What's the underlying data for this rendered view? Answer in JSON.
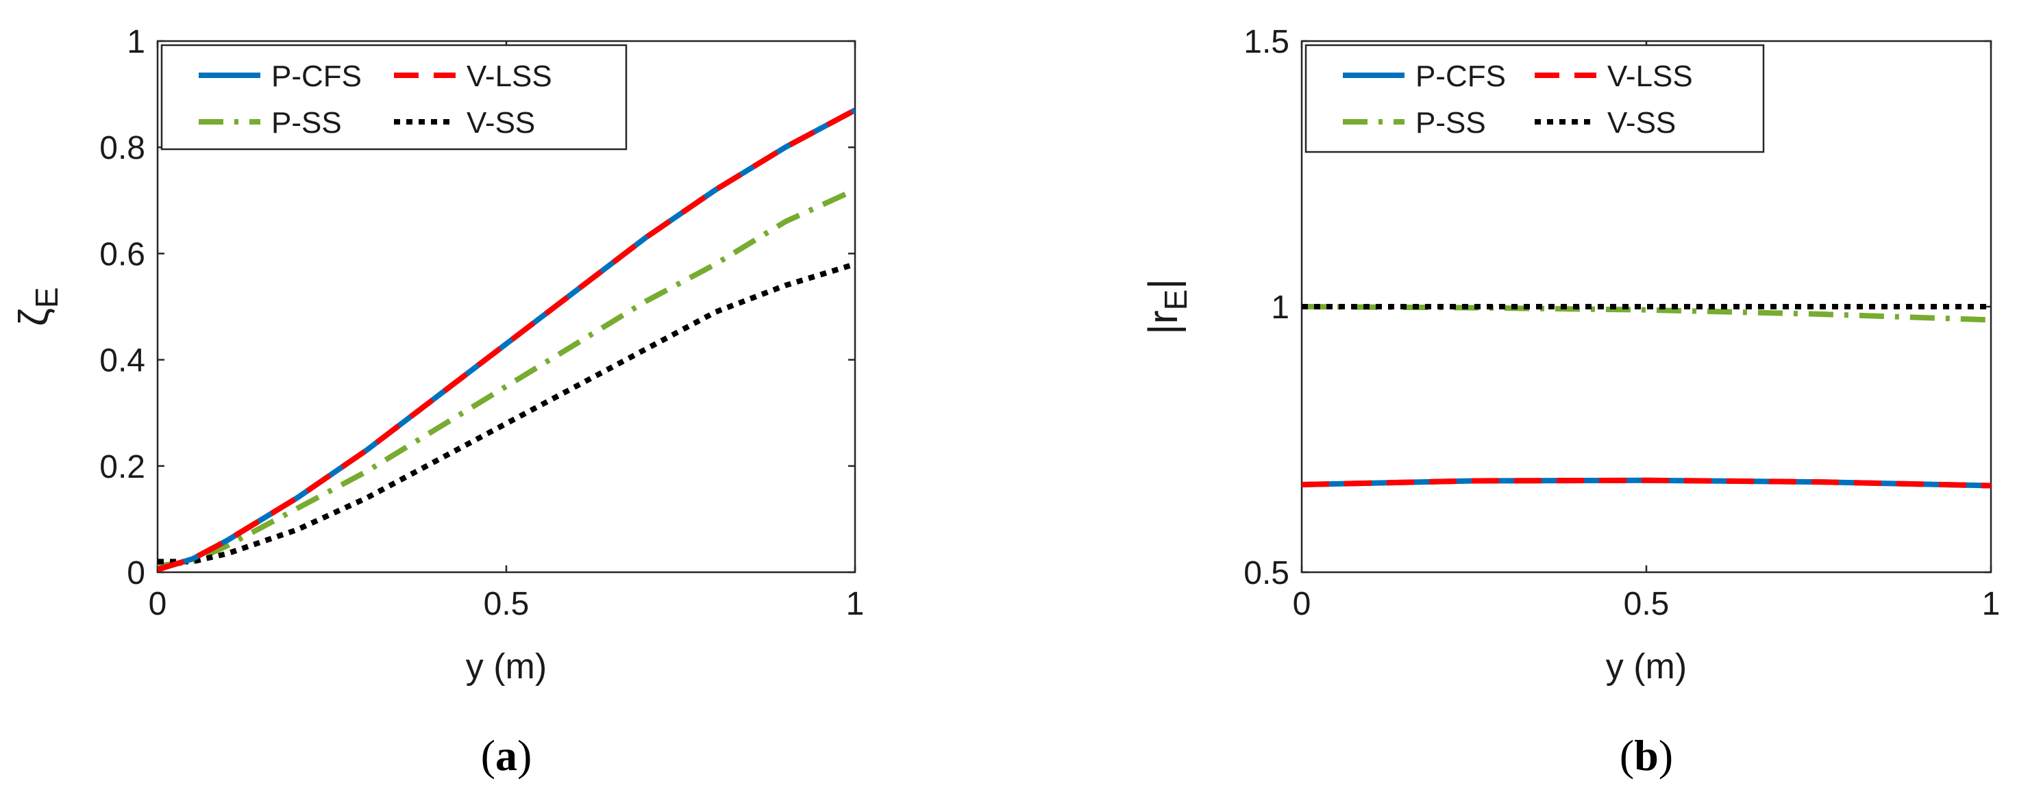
{
  "colors": {
    "P-CFS": "#0072BD",
    "V-LSS": "#FF0000",
    "P-SS": "#77AC30",
    "V-SS": "#000000",
    "axis": "#262626"
  },
  "chart_data": [
    {
      "type": "line",
      "panel_label": "(a)",
      "xlabel": "y (m)",
      "ylabel": "ζ",
      "ylabel_subscript": "E",
      "xlim": [
        0,
        1
      ],
      "ylim": [
        0,
        1
      ],
      "xticks": [
        0,
        0.5,
        1
      ],
      "xtick_labels": [
        "0",
        "0.5",
        "1"
      ],
      "yticks": [
        0,
        0.2,
        0.4,
        0.6,
        0.8,
        1
      ],
      "ytick_labels": [
        "0",
        "0.2",
        "0.4",
        "0.6",
        "0.8",
        "1"
      ],
      "grid": false,
      "legend_position": "top-left",
      "series": [
        {
          "name": "P-CFS",
          "style": "solid",
          "color_key": "P-CFS",
          "x": [
            0,
            0.05,
            0.1,
            0.2,
            0.3,
            0.4,
            0.5,
            0.6,
            0.7,
            0.8,
            0.9,
            1.0
          ],
          "y": [
            0.005,
            0.025,
            0.06,
            0.14,
            0.23,
            0.33,
            0.43,
            0.53,
            0.63,
            0.72,
            0.8,
            0.87
          ]
        },
        {
          "name": "V-LSS",
          "style": "dashed",
          "color_key": "V-LSS",
          "x": [
            0,
            0.05,
            0.1,
            0.2,
            0.3,
            0.4,
            0.5,
            0.6,
            0.7,
            0.8,
            0.9,
            1.0
          ],
          "y": [
            0.005,
            0.025,
            0.06,
            0.14,
            0.23,
            0.33,
            0.43,
            0.53,
            0.63,
            0.72,
            0.8,
            0.87
          ]
        },
        {
          "name": "P-SS",
          "style": "dashdot",
          "color_key": "P-SS",
          "x": [
            0,
            0.05,
            0.1,
            0.2,
            0.3,
            0.4,
            0.5,
            0.6,
            0.7,
            0.8,
            0.9,
            1.0
          ],
          "y": [
            0.012,
            0.02,
            0.05,
            0.12,
            0.19,
            0.27,
            0.35,
            0.43,
            0.51,
            0.58,
            0.66,
            0.72
          ]
        },
        {
          "name": "V-SS",
          "style": "dotted",
          "color_key": "V-SS",
          "x": [
            0,
            0.05,
            0.1,
            0.2,
            0.3,
            0.4,
            0.5,
            0.6,
            0.7,
            0.8,
            0.9,
            1.0
          ],
          "y": [
            0.02,
            0.02,
            0.035,
            0.08,
            0.14,
            0.21,
            0.28,
            0.35,
            0.42,
            0.49,
            0.54,
            0.58
          ]
        }
      ]
    },
    {
      "type": "line",
      "panel_label": "(b)",
      "xlabel": "y (m)",
      "ylabel": "|r",
      "ylabel_subscript": "E",
      "ylabel_suffix": "|",
      "xlim": [
        0,
        1
      ],
      "ylim": [
        0.5,
        1.5
      ],
      "xticks": [
        0,
        0.5,
        1
      ],
      "xtick_labels": [
        "0",
        "0.5",
        "1"
      ],
      "yticks": [
        0.5,
        1,
        1.5
      ],
      "ytick_labels": [
        "0.5",
        "1",
        "1.5"
      ],
      "grid": false,
      "legend_position": "top-left",
      "series": [
        {
          "name": "P-CFS",
          "style": "solid",
          "color_key": "P-CFS",
          "x": [
            0,
            0.25,
            0.5,
            0.75,
            1.0
          ],
          "y": [
            0.665,
            0.672,
            0.673,
            0.67,
            0.663
          ]
        },
        {
          "name": "V-LSS",
          "style": "dashed",
          "color_key": "V-LSS",
          "x": [
            0,
            0.25,
            0.5,
            0.75,
            1.0
          ],
          "y": [
            0.665,
            0.672,
            0.673,
            0.67,
            0.663
          ]
        },
        {
          "name": "P-SS",
          "style": "dashdot",
          "color_key": "P-SS",
          "x": [
            0,
            0.25,
            0.5,
            0.75,
            1.0
          ],
          "y": [
            1.0,
            0.998,
            0.994,
            0.986,
            0.975
          ]
        },
        {
          "name": "V-SS",
          "style": "dotted",
          "color_key": "V-SS",
          "x": [
            0,
            0.25,
            0.5,
            0.75,
            1.0
          ],
          "y": [
            1.0,
            1.0,
            1.0,
            1.0,
            1.0
          ]
        }
      ]
    }
  ]
}
